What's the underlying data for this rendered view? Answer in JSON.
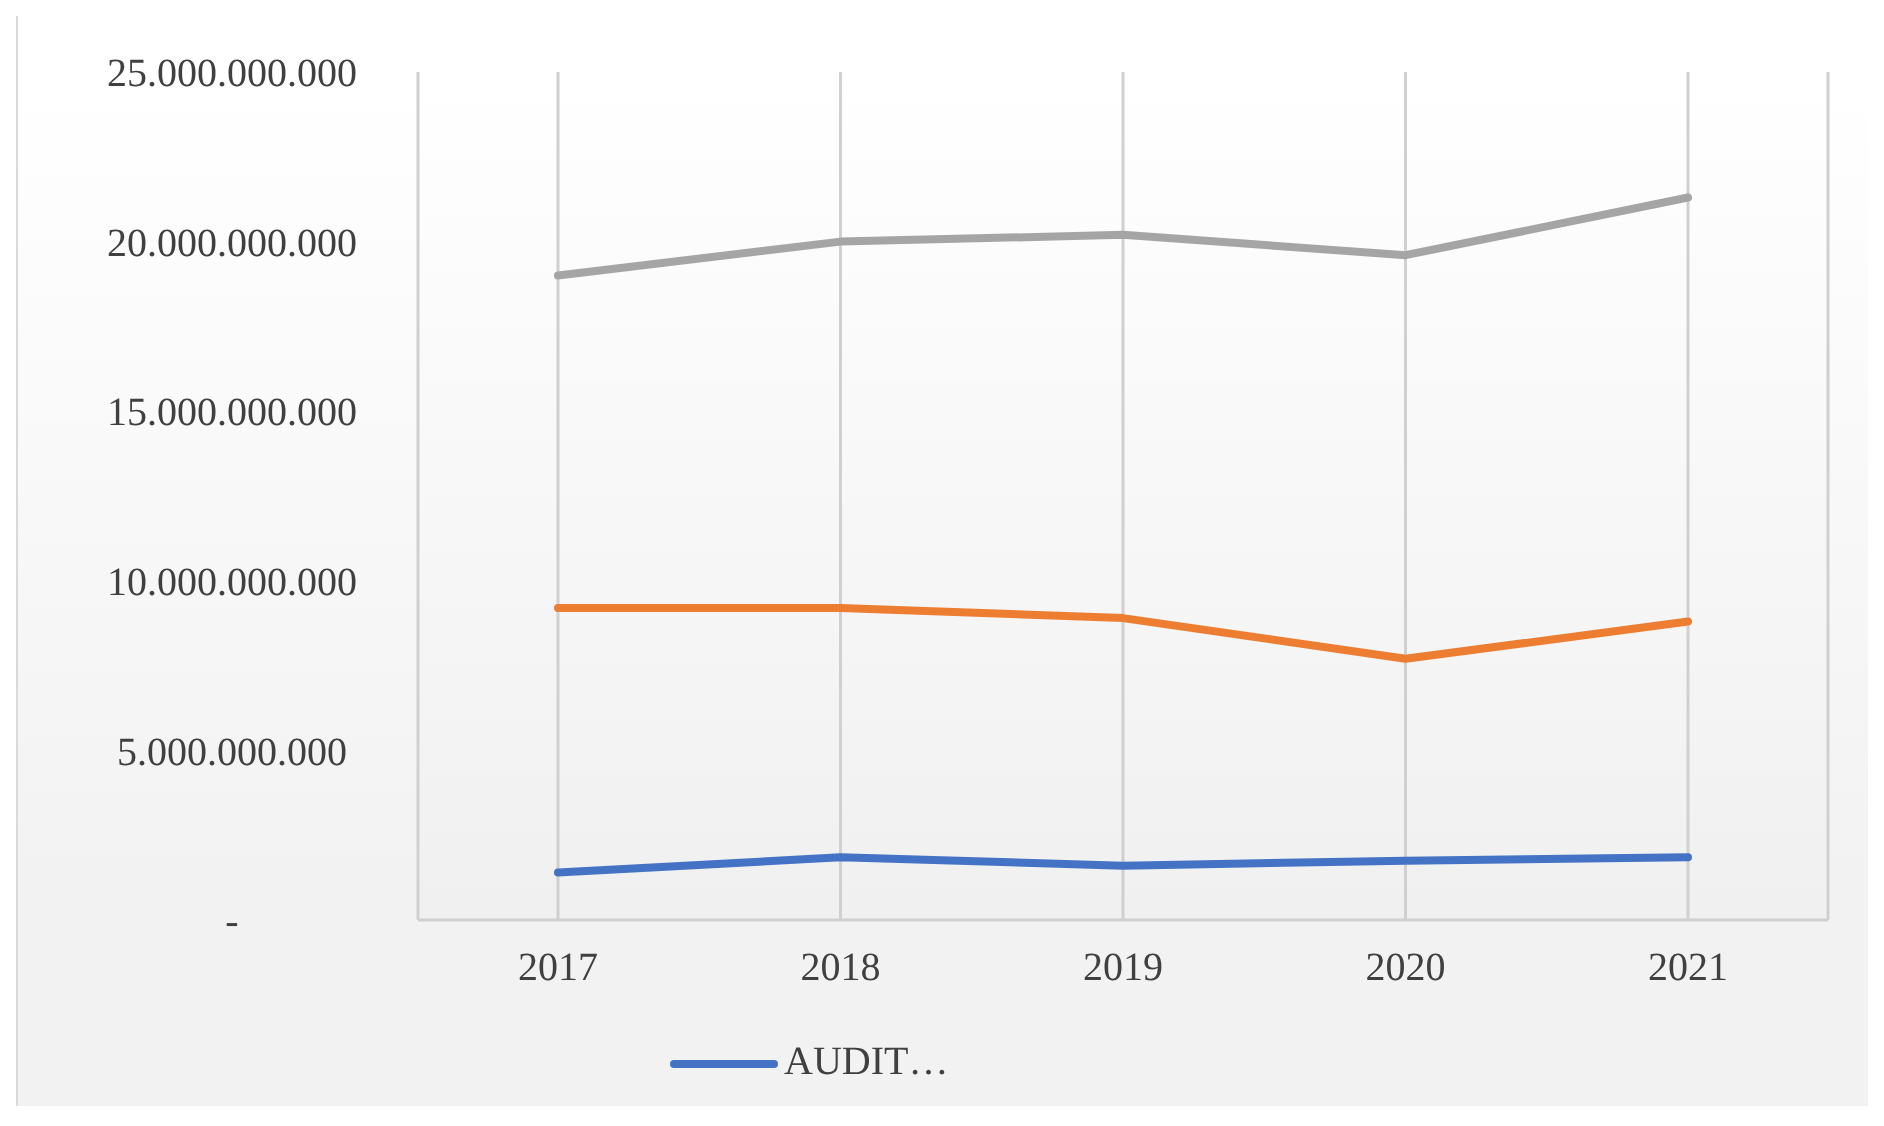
{
  "chart_data": {
    "type": "line",
    "categories": [
      "2017",
      "2018",
      "2019",
      "2020",
      "2021"
    ],
    "series": [
      {
        "name": "AUDIT…",
        "color": "#4472c4",
        "values": [
          1400000000,
          1850000000,
          1600000000,
          1750000000,
          1850000000
        ]
      },
      {
        "color": "#ed7d31",
        "values": [
          9200000000,
          9200000000,
          8900000000,
          7700000000,
          8800000000
        ]
      },
      {
        "color": "#a5a5a5",
        "values": [
          19000000000,
          20000000000,
          20200000000,
          19600000000,
          21300000000
        ]
      }
    ],
    "ylim": [
      0,
      25000000000
    ],
    "yticks": [
      {
        "value": 0,
        "label": "-"
      },
      {
        "value": 5000000000,
        "label": "5.000.000.000"
      },
      {
        "value": 10000000000,
        "label": "10.000.000.000"
      },
      {
        "value": 15000000000,
        "label": "15.000.000.000"
      },
      {
        "value": 20000000000,
        "label": "20.000.000.000"
      },
      {
        "value": 25000000000,
        "label": "25.000.000.000"
      }
    ],
    "grid": "x",
    "legend": "bottom",
    "marker": "none",
    "line_style": "solid"
  }
}
